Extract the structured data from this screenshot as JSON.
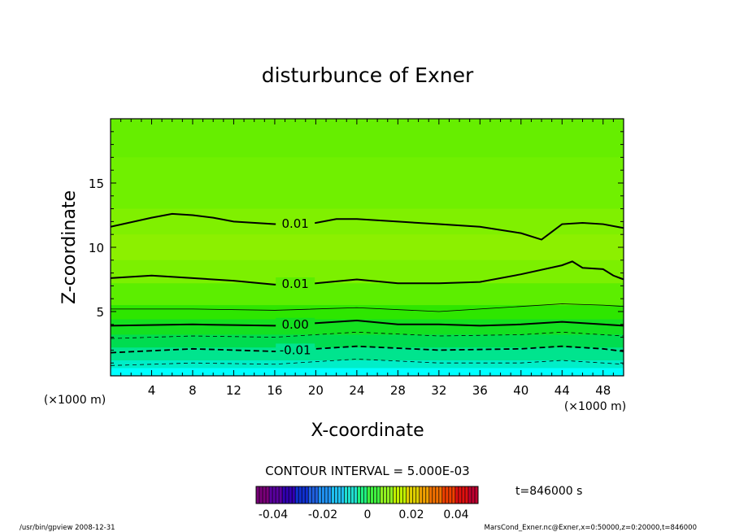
{
  "chart_data": {
    "type": "contour",
    "title": "disturbunce of Exner",
    "xlabel": "X-coordinate",
    "ylabel": "Z-coordinate",
    "x_unit_label_left": "(×1000 m)",
    "x_unit_label_right": "(×1000 m)",
    "xlim": [
      0,
      50
    ],
    "ylim": [
      0,
      20
    ],
    "x_ticks": [
      4,
      8,
      12,
      16,
      20,
      24,
      28,
      32,
      36,
      40,
      44,
      48
    ],
    "x_tick_labels": [
      "4",
      "8",
      "12",
      "16",
      "20",
      "24",
      "28",
      "32",
      "36",
      "40",
      "44",
      "48"
    ],
    "y_ticks": [
      5,
      10,
      15
    ],
    "y_tick_labels": [
      "5",
      "10",
      "15"
    ],
    "contours": [
      {
        "label": "0.01",
        "style": "solid",
        "x": [
          0,
          4,
          6,
          8,
          10,
          12,
          16,
          20,
          22,
          24,
          28,
          32,
          36,
          40,
          42,
          43,
          44,
          46,
          48,
          50
        ],
        "z": [
          11.6,
          12.3,
          12.6,
          12.5,
          12.3,
          12.0,
          11.8,
          11.9,
          12.2,
          12.2,
          12.0,
          11.8,
          11.6,
          11.1,
          10.6,
          11.2,
          11.8,
          11.9,
          11.8,
          11.5
        ]
      },
      {
        "label": "0.01",
        "style": "solid",
        "x": [
          0,
          4,
          8,
          12,
          16,
          20,
          24,
          28,
          32,
          36,
          40,
          44,
          45,
          46,
          48,
          49,
          50
        ],
        "z": [
          7.6,
          7.8,
          7.6,
          7.4,
          7.1,
          7.2,
          7.5,
          7.2,
          7.2,
          7.3,
          7.9,
          8.6,
          8.9,
          8.4,
          8.3,
          7.8,
          7.5
        ]
      },
      {
        "label": "",
        "style": "thin",
        "x": [
          0,
          8,
          16,
          24,
          32,
          40,
          44,
          48,
          50
        ],
        "z": [
          5.2,
          5.2,
          5.1,
          5.3,
          5.0,
          5.4,
          5.6,
          5.5,
          5.4
        ]
      },
      {
        "label": "0.00",
        "style": "solid",
        "x": [
          0,
          8,
          16,
          20,
          24,
          28,
          32,
          36,
          40,
          44,
          48,
          50
        ],
        "z": [
          3.9,
          4.0,
          3.9,
          4.1,
          4.3,
          4.0,
          4.0,
          3.9,
          4.0,
          4.2,
          4.0,
          3.9
        ]
      },
      {
        "label": "",
        "style": "dashed-thin",
        "x": [
          0,
          8,
          16,
          24,
          32,
          40,
          44,
          48,
          50
        ],
        "z": [
          2.9,
          3.1,
          3.0,
          3.4,
          3.1,
          3.2,
          3.4,
          3.2,
          3.1
        ]
      },
      {
        "label": "-0.01",
        "style": "dashed",
        "x": [
          0,
          8,
          16,
          24,
          32,
          40,
          44,
          48,
          50
        ],
        "z": [
          1.8,
          2.1,
          1.9,
          2.3,
          2.0,
          2.1,
          2.3,
          2.1,
          1.9
        ]
      },
      {
        "label": "",
        "style": "dashed-thin",
        "x": [
          0,
          8,
          16,
          24,
          32,
          40,
          44,
          48,
          50
        ],
        "z": [
          0.8,
          1.0,
          0.9,
          1.3,
          1.0,
          1.0,
          1.2,
          1.0,
          0.9
        ]
      }
    ],
    "color_bands": [
      {
        "z_top": 20,
        "color": "#66ee00"
      },
      {
        "z_top": 17,
        "color": "#70f000"
      },
      {
        "z_top": 13,
        "color": "#80f000"
      },
      {
        "z_top": 11,
        "color": "#8cf000"
      },
      {
        "z_top": 9,
        "color": "#7cf000"
      },
      {
        "z_top": 7.2,
        "color": "#5cee00"
      },
      {
        "z_top": 5.5,
        "color": "#2ee600"
      },
      {
        "z_top": 4.4,
        "color": "#14e020"
      },
      {
        "z_top": 3.2,
        "color": "#00dc50"
      },
      {
        "z_top": 2.2,
        "color": "#00e48e"
      },
      {
        "z_top": 1.2,
        "color": "#00eec8"
      },
      {
        "z_top": 0.6,
        "color": "#00ffff"
      }
    ],
    "contour_interval_label": "CONTOUR INTERVAL = 5.000E-03",
    "colorbar": {
      "ticks": [
        "-0.04",
        "-0.02",
        "0",
        "0.02",
        "0.04"
      ],
      "colors": [
        "#7a007a",
        "#5a00a0",
        "#3200b4",
        "#1030d0",
        "#2060e0",
        "#2090f0",
        "#20c0f0",
        "#20e0d0",
        "#20f080",
        "#40f040",
        "#90f020",
        "#c0f000",
        "#e0d000",
        "#f0a000",
        "#f07000",
        "#f04000",
        "#e01010",
        "#c00030"
      ]
    },
    "time_label": "t=846000 s",
    "footer_left": "/usr/bin/gpview   2008-12-31",
    "footer_right": "MarsCond_Exner.nc@Exner,x=0:50000,z=0:20000,t=846000"
  }
}
